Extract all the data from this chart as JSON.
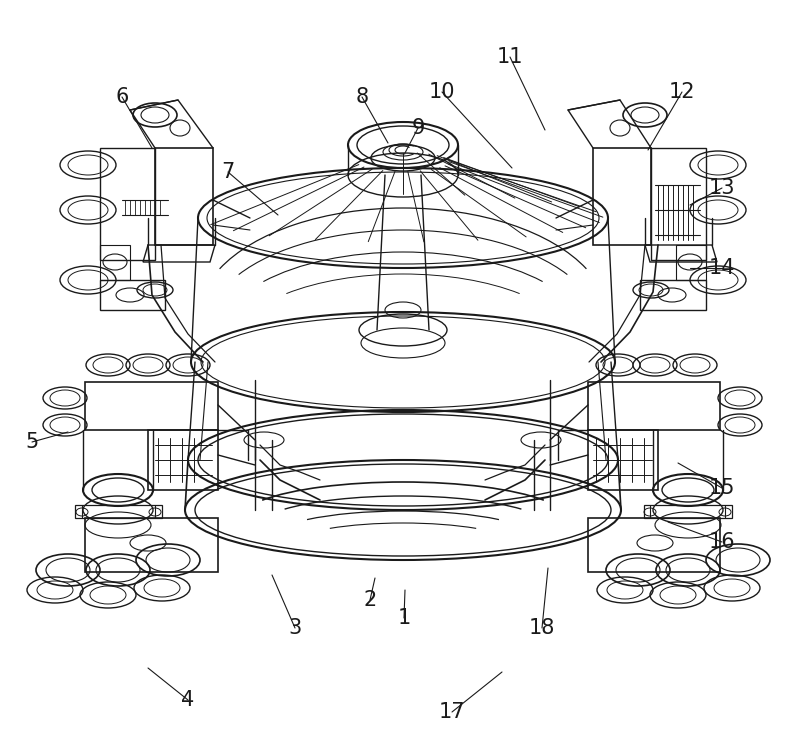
{
  "bg_color": "#ffffff",
  "line_color": "#1a1a1a",
  "figsize": [
    8.06,
    7.31
  ],
  "dpi": 100,
  "labels": [
    [
      "1",
      404,
      618
    ],
    [
      "2",
      370,
      600
    ],
    [
      "3",
      295,
      628
    ],
    [
      "4",
      188,
      700
    ],
    [
      "5",
      32,
      442
    ],
    [
      "6",
      122,
      97
    ],
    [
      "7",
      228,
      172
    ],
    [
      "8",
      362,
      97
    ],
    [
      "9",
      418,
      128
    ],
    [
      "10",
      442,
      92
    ],
    [
      "11",
      510,
      57
    ],
    [
      "12",
      682,
      92
    ],
    [
      "13",
      722,
      188
    ],
    [
      "14",
      722,
      268
    ],
    [
      "15",
      722,
      488
    ],
    [
      "16",
      722,
      542
    ],
    [
      "17",
      452,
      712
    ],
    [
      "18",
      542,
      628
    ]
  ],
  "leader_lines": [
    [
      404,
      618,
      405,
      590
    ],
    [
      370,
      600,
      375,
      578
    ],
    [
      295,
      628,
      272,
      575
    ],
    [
      188,
      700,
      148,
      668
    ],
    [
      32,
      442,
      68,
      432
    ],
    [
      122,
      97,
      152,
      148
    ],
    [
      228,
      172,
      278,
      215
    ],
    [
      362,
      97,
      388,
      143
    ],
    [
      418,
      128,
      405,
      153
    ],
    [
      442,
      92,
      512,
      168
    ],
    [
      510,
      57,
      545,
      130
    ],
    [
      682,
      92,
      648,
      150
    ],
    [
      722,
      188,
      690,
      205
    ],
    [
      722,
      268,
      690,
      268
    ],
    [
      722,
      488,
      678,
      463
    ],
    [
      722,
      542,
      668,
      522
    ],
    [
      452,
      712,
      502,
      672
    ],
    [
      542,
      628,
      548,
      568
    ]
  ]
}
